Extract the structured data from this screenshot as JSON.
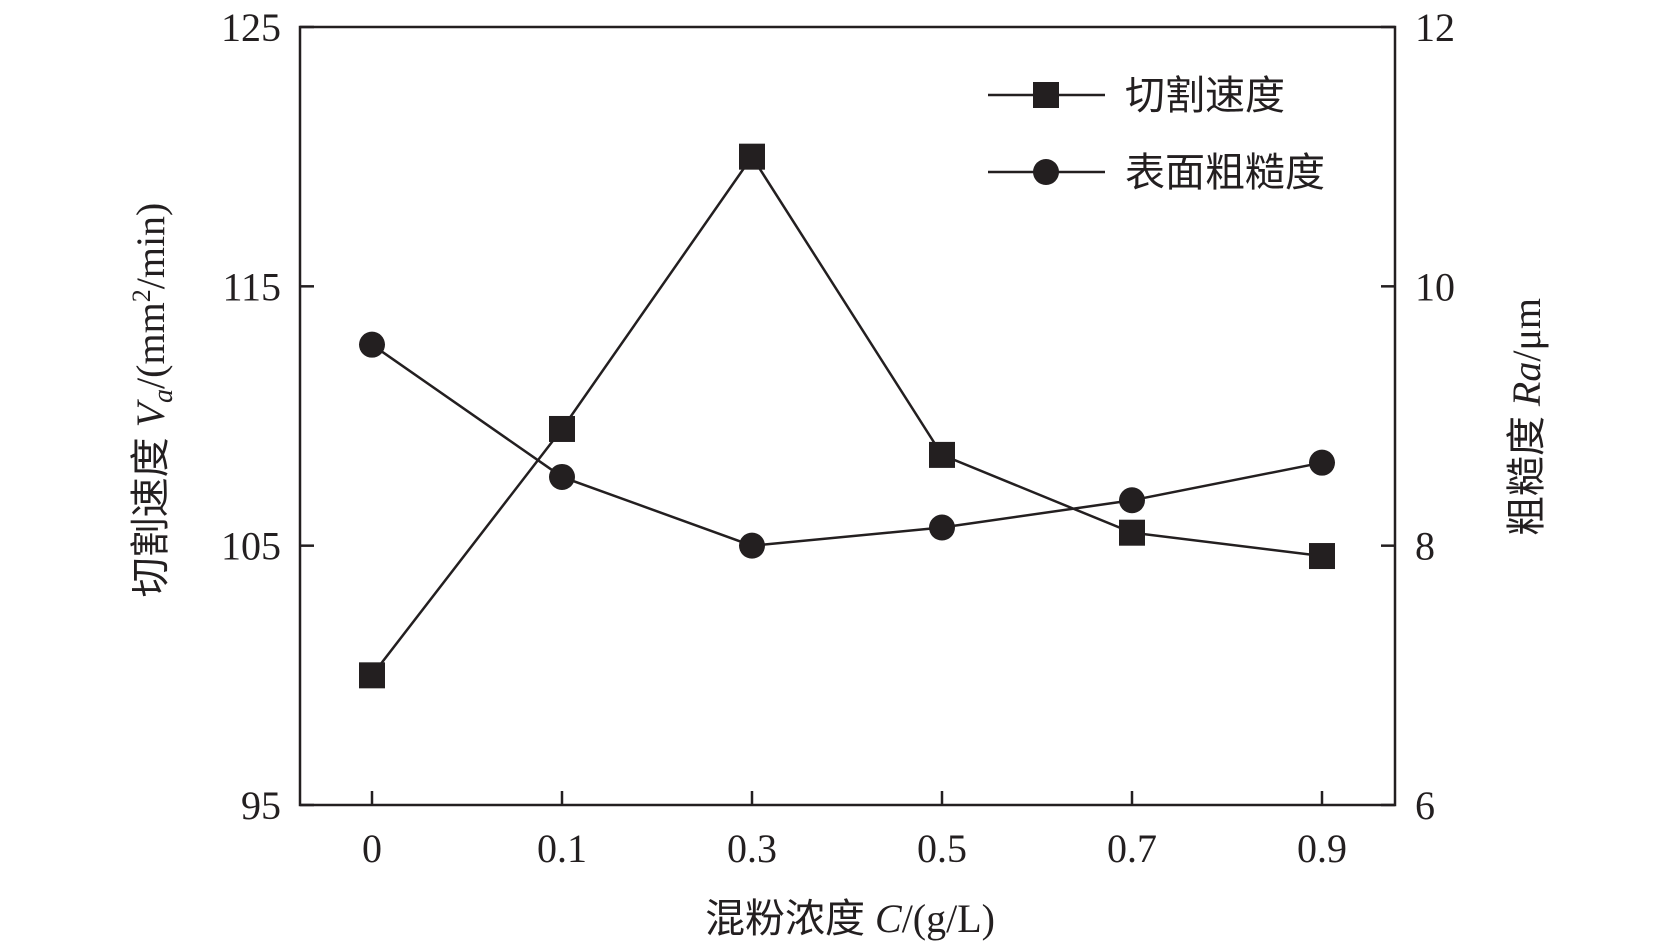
{
  "chart_data": {
    "type": "line",
    "categories": [
      "0",
      "0.1",
      "0.3",
      "0.5",
      "0.7",
      "0.9"
    ],
    "x": [
      0,
      0.1,
      0.3,
      0.5,
      0.7,
      0.9
    ],
    "xlabel": {
      "prefix": "混粉浓度 ",
      "var": "C",
      "unit": "/(g/L)"
    },
    "ylabel_left": {
      "prefix": "切割速度 ",
      "var": "V",
      "sub": "a",
      "unit_a": "/(mm",
      "sup": "2",
      "unit_b": "/min)"
    },
    "ylabel_right": {
      "prefix": "粗糙度 ",
      "var": "Ra",
      "unit": "/μm"
    },
    "ylim_left": [
      95,
      125
    ],
    "yticks_left": [
      95,
      105,
      115,
      125
    ],
    "ylim_right": [
      6,
      12
    ],
    "yticks_right": [
      6,
      8,
      10,
      12
    ],
    "series": [
      {
        "name": "切割速度",
        "axis": "left",
        "marker": "square",
        "values": [
          100,
          109.5,
          120,
          108.5,
          105.5,
          104.6
        ]
      },
      {
        "name": "表面粗糙度",
        "axis": "right",
        "marker": "circle",
        "values": [
          9.55,
          8.53,
          8.0,
          8.14,
          8.35,
          8.64
        ]
      }
    ],
    "legend": "top-right",
    "grid": false,
    "color": "#231f20"
  }
}
